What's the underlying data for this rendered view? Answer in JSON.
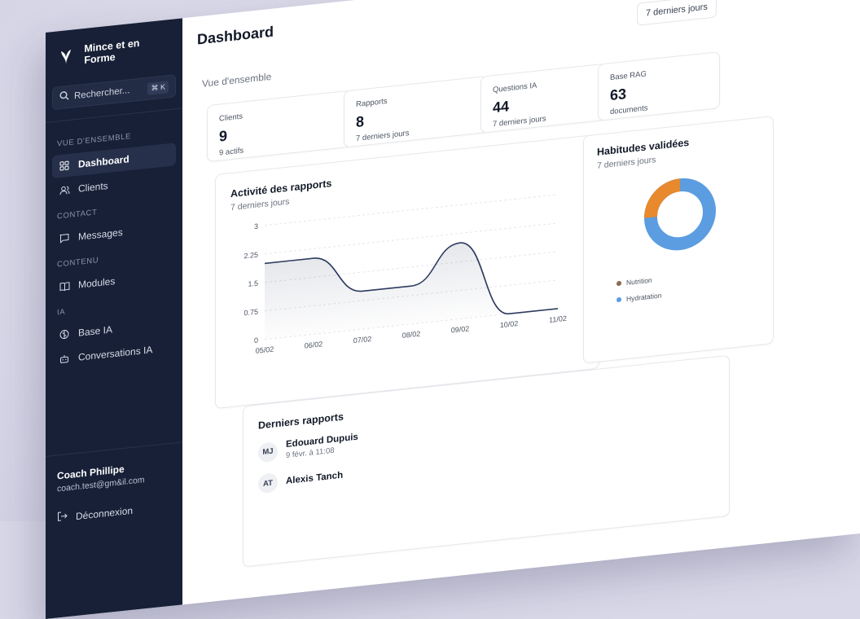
{
  "brand": {
    "name": "Mince et en Forme"
  },
  "search": {
    "placeholder": "Rechercher...",
    "shortcut": "⌘ K"
  },
  "sidebar": {
    "sections": [
      {
        "label": "VUE D'ENSEMBLE",
        "items": [
          {
            "label": "Dashboard",
            "icon": "dashboard-icon",
            "active": true
          },
          {
            "label": "Clients",
            "icon": "users-icon"
          }
        ]
      },
      {
        "label": "CONTACT",
        "items": [
          {
            "label": "Messages",
            "icon": "message-icon"
          }
        ]
      },
      {
        "label": "CONTENU",
        "items": [
          {
            "label": "Modules",
            "icon": "book-icon"
          }
        ]
      },
      {
        "label": "IA",
        "items": [
          {
            "label": "Base IA",
            "icon": "brain-icon"
          },
          {
            "label": "Conversations IA",
            "icon": "bot-icon"
          }
        ]
      }
    ],
    "user": {
      "name": "Coach Phillipe",
      "email": "coach.test@gm&il.com"
    },
    "logout_label": "Déconnexion"
  },
  "header": {
    "title": "Dashboard",
    "period": "7 derniers jours"
  },
  "overview_label": "Vue d'ensemble",
  "stats": [
    {
      "label": "Clients",
      "value": "9",
      "sub": "9 actifs"
    },
    {
      "label": "Rapports",
      "value": "8",
      "sub": "7 derniers jours"
    },
    {
      "label": "Questions IA",
      "value": "44",
      "sub": "7 derniers jours"
    },
    {
      "label": "Base RAG",
      "value": "63",
      "sub": "documents"
    }
  ],
  "activity": {
    "title": "Activité des rapports",
    "subtitle": "7 derniers jours"
  },
  "habits": {
    "title": "Habitudes validées",
    "subtitle": "7 derniers jours",
    "legend": [
      {
        "label": "Nutrition",
        "color": "#8a6a52"
      },
      {
        "label": "Hydratation",
        "color": "#5b9de0"
      }
    ]
  },
  "recent": {
    "title": "Derniers rapports",
    "rows": [
      {
        "initials": "MJ",
        "name": "Edouard Dupuis",
        "date": "9 févr. à 11:08"
      },
      {
        "initials": "AT",
        "name": "Alexis Tanch",
        "date": ""
      }
    ]
  },
  "chart_data": {
    "type": "area",
    "title": "Activité des rapports",
    "subtitle": "7 derniers jours",
    "categories": [
      "05/02",
      "06/02",
      "07/02",
      "08/02",
      "09/02",
      "10/02",
      "11/02"
    ],
    "values": [
      2,
      2,
      1,
      1,
      2,
      0,
      0
    ],
    "yticks": [
      "0",
      "0.75",
      "1.5",
      "2.25",
      "3"
    ],
    "ylim": [
      0,
      3
    ],
    "grid": true,
    "line_color": "#2d3a5e"
  }
}
